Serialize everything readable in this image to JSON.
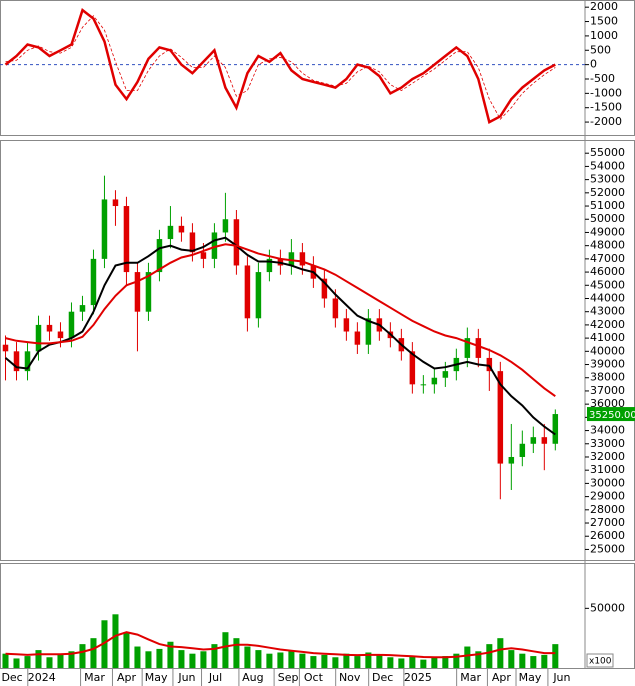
{
  "chart_data": [
    {
      "type": "line",
      "x": [
        0,
        1,
        2,
        3,
        4,
        5,
        6,
        7,
        8,
        9,
        10,
        11,
        12,
        13,
        14,
        15,
        16,
        17,
        18,
        19,
        20,
        21,
        22,
        23,
        24,
        25,
        26,
        27,
        28,
        29,
        30,
        31,
        32,
        33,
        34,
        35,
        36,
        37,
        38,
        39,
        40,
        41,
        42,
        43,
        44,
        45,
        46,
        47,
        48,
        49,
        50
      ],
      "xlim": [
        -0.5,
        52.7
      ],
      "ylim": [
        -2450,
        2250
      ],
      "yticks": [
        2000,
        1500,
        1000,
        500,
        0,
        -500,
        -1000,
        -1500,
        -2000
      ],
      "series": [
        {
          "color": "#e00000",
          "width": 2.5,
          "values": [
            0,
            300,
            700,
            600,
            300,
            500,
            700,
            1900,
            1600,
            800,
            -700,
            -1200,
            -600,
            200,
            600,
            500,
            0,
            -300,
            100,
            500,
            -800,
            -1500,
            -300,
            300,
            100,
            400,
            -200,
            -500,
            -600,
            -700,
            -800,
            -500,
            0,
            -100,
            -400,
            -1000,
            -800,
            -500,
            -300,
            0,
            300,
            600,
            300,
            -500,
            -2000,
            -1800,
            -1200,
            -800,
            -500,
            -200,
            0
          ]
        },
        {
          "color": "#e00000",
          "width": 0.8,
          "dashed": true,
          "values": [
            100,
            150,
            500,
            650,
            450,
            400,
            600,
            1300,
            1700,
            1200,
            100,
            -900,
            -900,
            -200,
            300,
            550,
            250,
            -100,
            -100,
            300,
            -100,
            -1100,
            -900,
            0,
            200,
            250,
            100,
            -300,
            -550,
            -650,
            -750,
            -650,
            -250,
            -50,
            -250,
            -700,
            -900,
            -650,
            -400,
            -150,
            150,
            450,
            450,
            -100,
            -1200,
            -1900,
            -1500,
            -1000,
            -650,
            -350,
            -100
          ]
        }
      ]
    },
    {
      "type": "candlestick",
      "x": [
        0,
        1,
        2,
        3,
        4,
        5,
        6,
        7,
        8,
        9,
        10,
        11,
        12,
        13,
        14,
        15,
        16,
        17,
        18,
        19,
        20,
        21,
        22,
        23,
        24,
        25,
        26,
        27,
        28,
        29,
        30,
        31,
        32,
        33,
        34,
        35,
        36,
        37,
        38,
        39,
        40,
        41,
        42,
        43,
        44,
        45,
        46,
        47,
        48,
        49,
        50
      ],
      "xlim": [
        -0.5,
        52.7
      ],
      "ylim": [
        24200,
        56000
      ],
      "yticks": [
        25000,
        26000,
        27000,
        28000,
        29000,
        30000,
        31000,
        32000,
        33000,
        34000,
        35000,
        36000,
        37000,
        38000,
        39000,
        40000,
        41000,
        42000,
        43000,
        44000,
        45000,
        46000,
        47000,
        48000,
        49000,
        50000,
        51000,
        52000,
        53000,
        54000,
        55000
      ],
      "up_color": "#00a000",
      "down_color": "#e00000",
      "open": [
        40500,
        40000,
        38500,
        40000,
        42000,
        41500,
        41000,
        43000,
        43500,
        47000,
        51500,
        51000,
        46000,
        43000,
        46000,
        48500,
        49500,
        49000,
        47500,
        47000,
        49000,
        50000,
        46500,
        42500,
        46000,
        47000,
        46500,
        47500,
        46500,
        45500,
        44000,
        42500,
        41500,
        40500,
        42500,
        41500,
        41000,
        40000,
        37500,
        37500,
        38000,
        38500,
        39500,
        41000,
        39500,
        38500,
        31500,
        32000,
        33000,
        33500,
        33000
      ],
      "high": [
        41200,
        40700,
        40700,
        42700,
        42700,
        42200,
        43700,
        44200,
        47700,
        53300,
        52200,
        51700,
        46700,
        46700,
        49200,
        51000,
        50200,
        49700,
        48200,
        49700,
        52000,
        50700,
        47200,
        46700,
        47700,
        47700,
        48500,
        48200,
        47200,
        46200,
        44700,
        43200,
        42200,
        43200,
        43200,
        42200,
        41700,
        40700,
        38200,
        38700,
        39200,
        40200,
        41800,
        41700,
        40200,
        39200,
        34500,
        34000,
        34300,
        34500,
        35600
      ],
      "low": [
        37800,
        37800,
        37800,
        39300,
        40800,
        40300,
        40300,
        42300,
        42800,
        46300,
        49500,
        45000,
        40000,
        42300,
        45300,
        47800,
        48300,
        46800,
        46300,
        46300,
        48300,
        45800,
        41500,
        41800,
        45300,
        45800,
        45800,
        45800,
        44800,
        43300,
        41800,
        40800,
        39800,
        39800,
        40800,
        40300,
        39300,
        36800,
        36800,
        36800,
        37300,
        37800,
        38800,
        38800,
        37000,
        28800,
        29500,
        31300,
        32300,
        31000,
        32500
      ],
      "close": [
        40000,
        38500,
        40000,
        42000,
        41500,
        41000,
        43000,
        43500,
        47000,
        51500,
        51000,
        46000,
        43000,
        46000,
        48500,
        49500,
        49000,
        47500,
        47000,
        49000,
        50000,
        46500,
        42500,
        46000,
        47000,
        46500,
        47500,
        46500,
        45500,
        44000,
        42500,
        41500,
        40500,
        42500,
        41500,
        41000,
        40000,
        37500,
        37500,
        38000,
        38500,
        39500,
        41000,
        39500,
        38500,
        31500,
        32000,
        33000,
        33500,
        33000,
        35250
      ],
      "close_labels": {
        "50": "35250.00"
      },
      "series": [
        {
          "color": "#000000",
          "values": [
            39500,
            38800,
            38700,
            40000,
            40500,
            40700,
            41000,
            41500,
            43000,
            45000,
            46500,
            46700,
            46700,
            47200,
            47800,
            48000,
            47700,
            47600,
            47900,
            48400,
            48600,
            48000,
            47300,
            46800,
            46800,
            46700,
            46500,
            46200,
            46000,
            45200,
            44300,
            43500,
            42700,
            42300,
            42000,
            41300,
            40500,
            39800,
            39200,
            38700,
            38800,
            39000,
            39200,
            39000,
            38900,
            37500,
            36600,
            35900,
            35000,
            34300,
            33700
          ]
        },
        {
          "color": "#e00000",
          "values": [
            41000,
            40800,
            40700,
            40600,
            40600,
            40700,
            40800,
            41100,
            42000,
            43200,
            44200,
            45000,
            45300,
            45700,
            46200,
            46700,
            47100,
            47300,
            47600,
            47900,
            48100,
            48000,
            47700,
            47400,
            47200,
            47000,
            46900,
            46800,
            46500,
            46200,
            45800,
            45300,
            44800,
            44300,
            43800,
            43300,
            42800,
            42300,
            41900,
            41500,
            41200,
            41000,
            40700,
            40400,
            40100,
            39700,
            39200,
            38600,
            37900,
            37200,
            36600
          ]
        }
      ]
    },
    {
      "type": "bar",
      "x": [
        0,
        1,
        2,
        3,
        4,
        5,
        6,
        7,
        8,
        9,
        10,
        11,
        12,
        13,
        14,
        15,
        16,
        17,
        18,
        19,
        20,
        21,
        22,
        23,
        24,
        25,
        26,
        27,
        28,
        29,
        30,
        31,
        32,
        33,
        34,
        35,
        36,
        37,
        38,
        39,
        40,
        41,
        42,
        43,
        44,
        45,
        46,
        47,
        48,
        49,
        50
      ],
      "xlim": [
        -0.5,
        52.7
      ],
      "ylim": [
        0,
        88000
      ],
      "yticks": [
        50000
      ],
      "unit_label": "x100",
      "color": "#00a000",
      "values": [
        12000,
        8000,
        10000,
        15000,
        9000,
        11000,
        14000,
        20000,
        25000,
        40000,
        45000,
        30000,
        18000,
        14000,
        16000,
        22000,
        15000,
        12000,
        14000,
        20000,
        30000,
        25000,
        18000,
        15000,
        12000,
        13000,
        14000,
        12000,
        10000,
        11000,
        9000,
        12000,
        10000,
        13000,
        11000,
        9000,
        8000,
        10000,
        7000,
        9000,
        10000,
        12000,
        18000,
        14000,
        20000,
        25000,
        15000,
        12000,
        10000,
        11000,
        20000
      ],
      "series": [
        {
          "color": "#e00000",
          "values": [
            12000,
            11500,
            11000,
            11500,
            11500,
            11500,
            12000,
            13500,
            16000,
            21000,
            27000,
            30000,
            28000,
            24000,
            20000,
            18000,
            17500,
            16500,
            15500,
            16000,
            18000,
            19500,
            19500,
            18500,
            17000,
            15500,
            14500,
            13500,
            12500,
            12000,
            11500,
            11000,
            10800,
            11000,
            11000,
            10800,
            10200,
            9800,
            9200,
            9000,
            9000,
            9500,
            10500,
            11500,
            13000,
            15500,
            16500,
            15500,
            14000,
            12500,
            12500
          ]
        }
      ],
      "xticks": [
        {
          "value": 0.6,
          "label": "Dec"
        },
        {
          "value": 3.3,
          "label": "2024"
        },
        {
          "value": 8.1,
          "label": "Mar"
        },
        {
          "value": 11,
          "label": "Apr"
        },
        {
          "value": 13.7,
          "label": "May"
        },
        {
          "value": 16.5,
          "label": "Jun"
        },
        {
          "value": 19.1,
          "label": "Jul"
        },
        {
          "value": 22.5,
          "label": "Aug"
        },
        {
          "value": 25.7,
          "label": "Sep"
        },
        {
          "value": 28,
          "label": "Oct"
        },
        {
          "value": 31.3,
          "label": "Nov"
        },
        {
          "value": 34.3,
          "label": "Dec"
        },
        {
          "value": 37.5,
          "label": "2025"
        },
        {
          "value": 42.3,
          "label": "Mar"
        },
        {
          "value": 45.1,
          "label": "Apr"
        },
        {
          "value": 47.7,
          "label": "May"
        },
        {
          "value": 50.6,
          "label": "Jun"
        }
      ]
    }
  ]
}
